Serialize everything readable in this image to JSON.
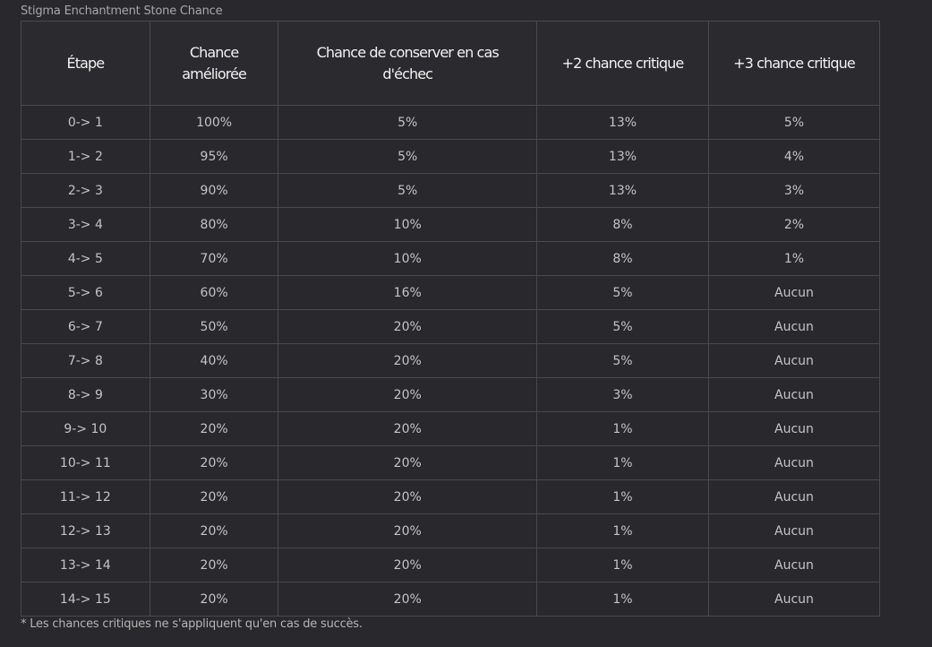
{
  "caption": "Stigma Enchantment Stone Chance",
  "table": {
    "headers": [
      [
        "Étape"
      ],
      [
        "Chance",
        "améliorée"
      ],
      [
        "Chance de conserver en cas",
        "d'échec"
      ],
      [
        "+2 chance critique"
      ],
      [
        "+3 chance critique"
      ]
    ],
    "rows": [
      [
        "0-> 1",
        "100%",
        "5%",
        "13%",
        "5%"
      ],
      [
        "1-> 2",
        "95%",
        "5%",
        "13%",
        "4%"
      ],
      [
        "2-> 3",
        "90%",
        "5%",
        "13%",
        "3%"
      ],
      [
        "3-> 4",
        "80%",
        "10%",
        "8%",
        "2%"
      ],
      [
        "4-> 5",
        "70%",
        "10%",
        "8%",
        "1%"
      ],
      [
        "5-> 6",
        "60%",
        "16%",
        "5%",
        "Aucun"
      ],
      [
        "6-> 7",
        "50%",
        "20%",
        "5%",
        "Aucun"
      ],
      [
        "7-> 8",
        "40%",
        "20%",
        "5%",
        "Aucun"
      ],
      [
        "8-> 9",
        "30%",
        "20%",
        "3%",
        "Aucun"
      ],
      [
        "9-> 10",
        "20%",
        "20%",
        "1%",
        "Aucun"
      ],
      [
        "10-> 11",
        "20%",
        "20%",
        "1%",
        "Aucun"
      ],
      [
        "11-> 12",
        "20%",
        "20%",
        "1%",
        "Aucun"
      ],
      [
        "12-> 13",
        "20%",
        "20%",
        "1%",
        "Aucun"
      ],
      [
        "13-> 14",
        "20%",
        "20%",
        "1%",
        "Aucun"
      ],
      [
        "14-> 15",
        "20%",
        "20%",
        "1%",
        "Aucun"
      ]
    ]
  },
  "footnote": "* Les chances critiques ne s'appliquent qu'en cas de succès."
}
